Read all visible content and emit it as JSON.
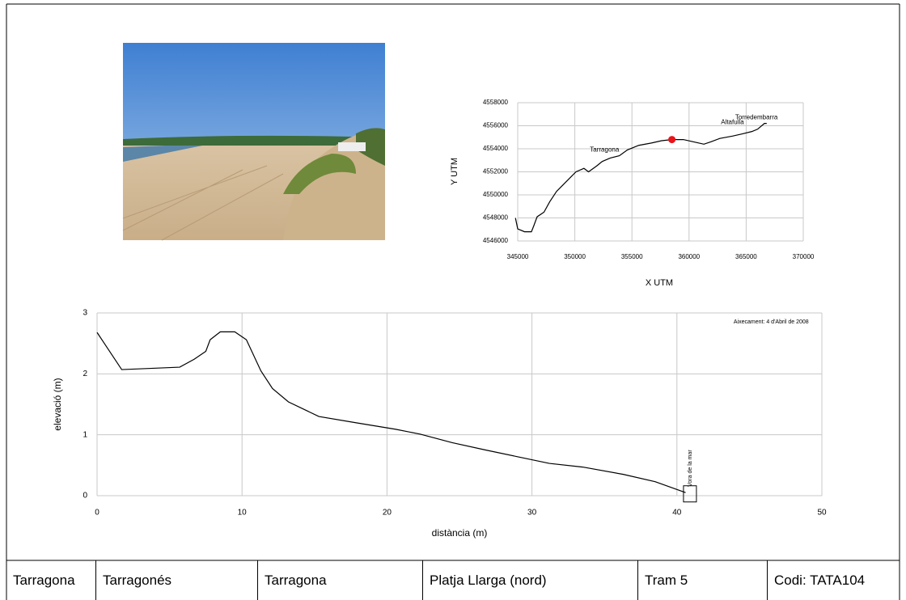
{
  "chart_data": [
    {
      "type": "line",
      "x_label": "X UTM",
      "y_label": "Y UTM",
      "color": "#000000",
      "x": [
        344800,
        345000,
        345600,
        346200,
        346400,
        346700,
        347300,
        347800,
        348400,
        349200,
        350100,
        350800,
        351200,
        351900,
        352400,
        353100,
        353900,
        354600,
        355600,
        356700,
        357600,
        358500,
        359500,
        360400,
        361300,
        361900,
        362700,
        363800,
        364700,
        365500,
        366000,
        366600,
        366800
      ],
      "values": [
        4548000,
        4547050,
        4546800,
        4546800,
        4547300,
        4548100,
        4548500,
        4549400,
        4550300,
        4551100,
        4552000,
        4552300,
        4552000,
        4552500,
        4552900,
        4553200,
        4553400,
        4553900,
        4554300,
        4554500,
        4554700,
        4554800,
        4554800,
        4554600,
        4554400,
        4554600,
        4554900,
        4555100,
        4555300,
        4555500,
        4555700,
        4556200,
        4556200
      ],
      "marker": {
        "x": 358500,
        "y": 4554800,
        "color": "#e8141a"
      },
      "annotations": [
        {
          "text": "Tarragona",
          "x": 352600,
          "y": 4553900
        },
        {
          "text": "Altafulla",
          "x": 363800,
          "y": 4556300
        },
        {
          "text": "Torredembarra",
          "x": 365900,
          "y": 4556700
        }
      ],
      "xlim": [
        345000,
        370000
      ],
      "xticks": [
        345000,
        350000,
        355000,
        360000,
        365000,
        370000
      ],
      "ylim": [
        4546000,
        4558000
      ],
      "yticks": [
        4546000,
        4548000,
        4550000,
        4552000,
        4554000,
        4556000,
        4558000
      ],
      "grid": true
    },
    {
      "type": "line",
      "x_label": "distància (m)",
      "y_label": "elevació (m)",
      "color": "#000000",
      "x": [
        0,
        1.7,
        5.7,
        6.7,
        7.5,
        7.8,
        8.5,
        9.5,
        10.3,
        11.3,
        12.1,
        13.2,
        15.3,
        17.8,
        20.6,
        22.3,
        24.5,
        26.8,
        29.0,
        31.2,
        33.5,
        36.3,
        38.5,
        40.6
      ],
      "values": [
        2.68,
        2.07,
        2.11,
        2.24,
        2.37,
        2.56,
        2.69,
        2.69,
        2.56,
        2.05,
        1.76,
        1.54,
        1.3,
        1.2,
        1.09,
        1.01,
        0.87,
        0.75,
        0.64,
        0.53,
        0.47,
        0.35,
        0.23,
        0.05
      ],
      "marker": {
        "x": 40.9,
        "y": 0.03,
        "color": "#000000"
      },
      "annotations": [
        {
          "text": "Aixecament: 4 d'Abril de 2008",
          "x": 46.5,
          "y": 2.85
        },
        {
          "text": "Vora de la mar",
          "x": 40.9,
          "y": 0.45,
          "rotation": -90
        }
      ],
      "xlim": [
        0,
        50
      ],
      "xticks": [
        0,
        10,
        20,
        30,
        40,
        50
      ],
      "ylim": [
        0,
        3
      ],
      "yticks": [
        0,
        1,
        2,
        3
      ],
      "grid": true
    }
  ],
  "table": {
    "rows": [
      [
        "Tarragona",
        "Tarragonés",
        "Tarragona",
        "Platja Llarga (nord)",
        "Tram 5",
        "Codi: TATA104"
      ]
    ]
  }
}
